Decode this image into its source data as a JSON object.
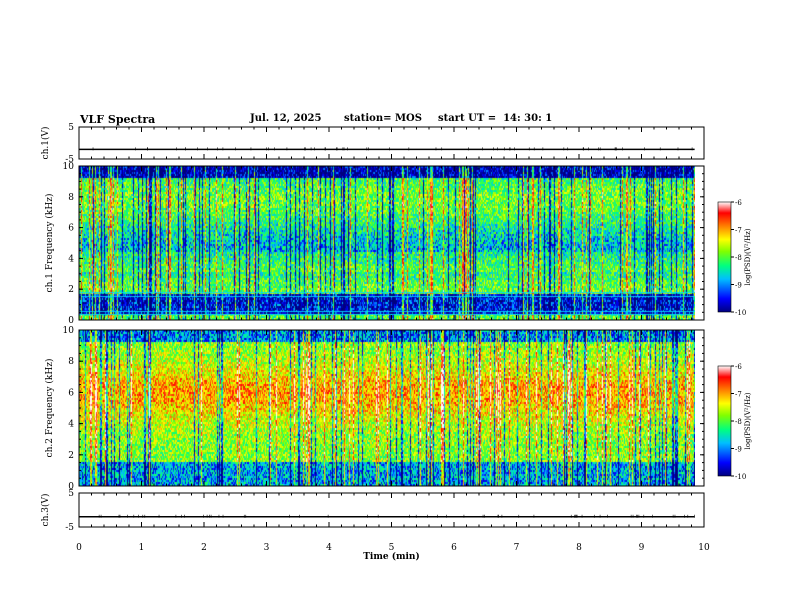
{
  "header": {
    "title": "VLF Spectra",
    "date": "Jul. 12, 2025",
    "station": "station= MOS",
    "start": "start UT =  14: 30: 1"
  },
  "chart_data": [
    {
      "type": "line",
      "panel": "ch1-waveform",
      "ylabel": "ch.1(V)",
      "ylim": [
        -5,
        5
      ],
      "yticks": [
        "5",
        "-5"
      ],
      "x": [
        0,
        10
      ],
      "values_description_level": -2,
      "series": [
        {
          "values": [
            -2,
            -2
          ]
        }
      ],
      "xlim": [
        0,
        10
      ]
    },
    {
      "type": "heatmap",
      "panel": "ch1-spectrogram",
      "ylabel": "ch.1 Frequency (kHz)",
      "ylim": [
        0,
        10
      ],
      "yticks": [
        "0",
        "2",
        "4",
        "6",
        "8",
        "10"
      ],
      "xlim": [
        0,
        9.85
      ],
      "colorbar": {
        "label": "log(PSD)(V²/Hz)",
        "range": [
          -10,
          -6
        ],
        "ticks": [
          "-6",
          "-7",
          "-8",
          "-9",
          "-10"
        ]
      }
    },
    {
      "type": "heatmap",
      "panel": "ch2-spectrogram",
      "ylabel": "ch.2 Frequency (kHz)",
      "ylim": [
        0,
        10
      ],
      "yticks": [
        "0",
        "2",
        "4",
        "6",
        "8",
        "10"
      ],
      "xlim": [
        0,
        9.85
      ],
      "colorbar": {
        "label": "log(PSD)(V²/Hz)",
        "range": [
          -10,
          -6
        ],
        "ticks": [
          "-6",
          "-7",
          "-8",
          "-9",
          "-10"
        ]
      }
    },
    {
      "type": "line",
      "panel": "ch3-waveform",
      "ylabel": "ch.3(V)",
      "ylim": [
        -5,
        5
      ],
      "yticks": [
        "5",
        "-5"
      ],
      "xlim": [
        0,
        10
      ],
      "series": [
        {
          "values": [
            -2,
            -2
          ]
        }
      ]
    }
  ],
  "xaxis": {
    "label": "Time (min)",
    "ticks": [
      "0",
      "1",
      "2",
      "3",
      "4",
      "5",
      "6",
      "7",
      "8",
      "9",
      "10"
    ],
    "range": [
      0,
      10
    ]
  },
  "colors": {
    "colormap": [
      "#00007f",
      "#0000ff",
      "#00bfff",
      "#00ff80",
      "#80ff00",
      "#ffff00",
      "#ff8000",
      "#ff0000",
      "#ffffff"
    ]
  }
}
